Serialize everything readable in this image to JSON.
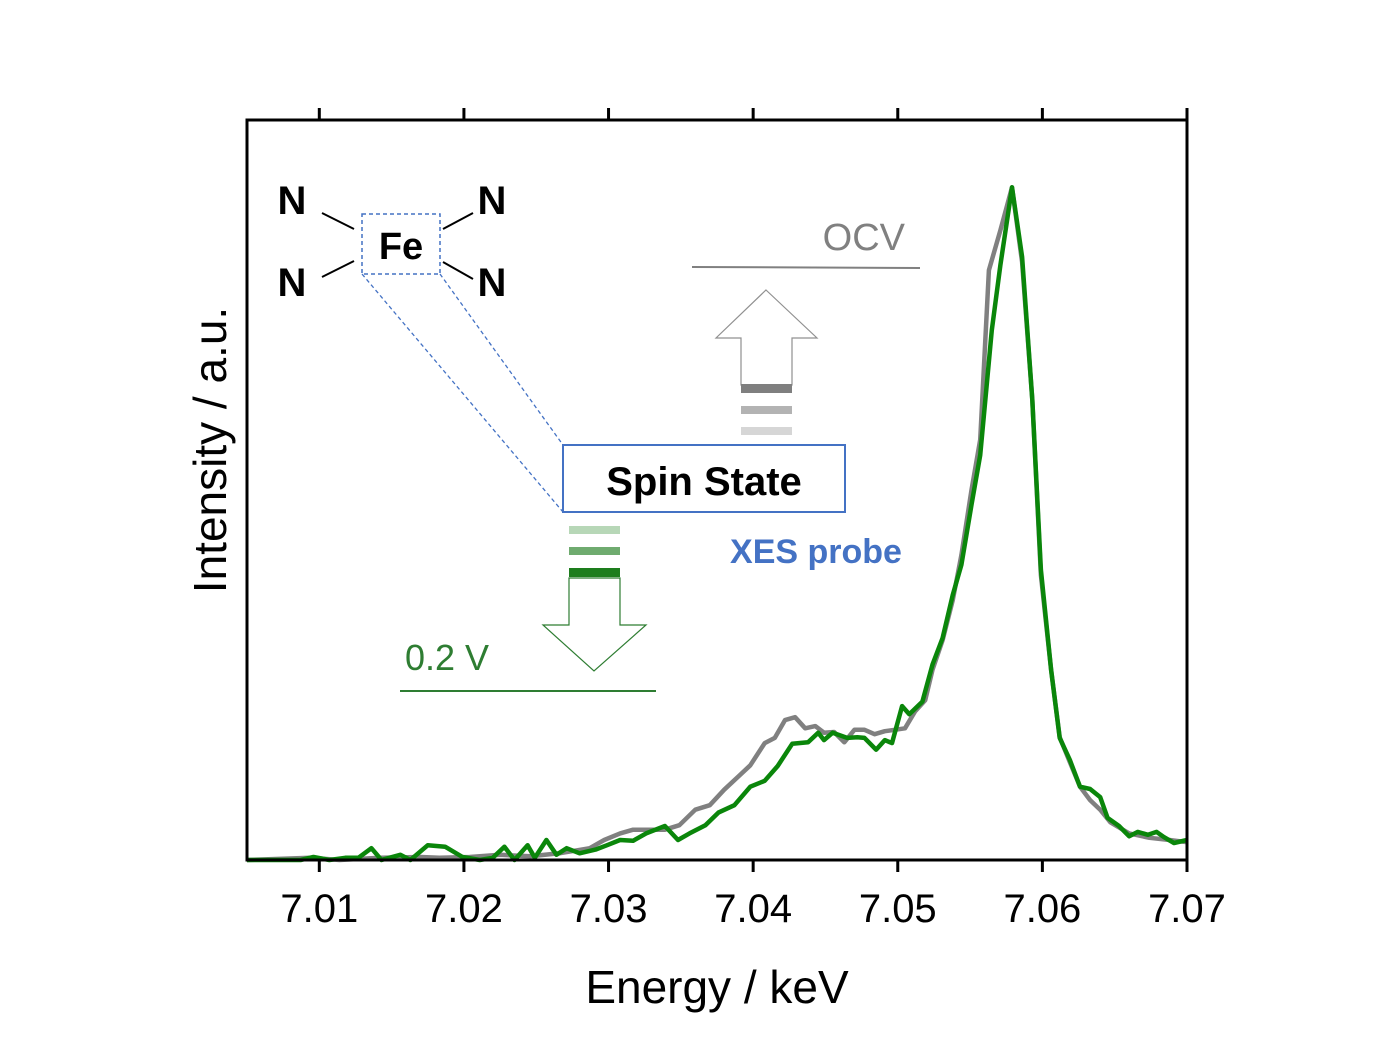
{
  "chart_data": {
    "type": "line",
    "title": "",
    "xlabel": "Energy / keV",
    "ylabel": "Intensity / a.u.",
    "xlim": [
      7.005,
      7.07
    ],
    "ylim": [
      0,
      1
    ],
    "xticks": [
      "7.01",
      "7.02",
      "7.03",
      "7.04",
      "7.05",
      "7.06",
      "7.07"
    ],
    "xtick_values": [
      7.01,
      7.02,
      7.03,
      7.04,
      7.05,
      7.06,
      7.07
    ],
    "yticks_shown": false,
    "grid": false,
    "series": [
      {
        "name": "OCV",
        "color": "#808080",
        "x": [
          7.005,
          7.0094,
          7.0114,
          7.0142,
          7.017,
          7.0183,
          7.0204,
          7.0225,
          7.0246,
          7.0266,
          7.0287,
          7.0297,
          7.0308,
          7.0317,
          7.0326,
          7.0339,
          7.0349,
          7.036,
          7.037,
          7.038,
          7.0391,
          7.0398,
          7.0408,
          7.0415,
          7.0422,
          7.0429,
          7.0436,
          7.0443,
          7.0449,
          7.0456,
          7.0463,
          7.047,
          7.0477,
          7.0484,
          7.0491,
          7.0498,
          7.0505,
          7.0512,
          7.0519,
          7.0524,
          7.0531,
          7.0538,
          7.0544,
          7.0551,
          7.0557,
          7.0563,
          7.0571,
          7.0579,
          7.0586,
          7.0593,
          7.0599,
          7.0606,
          7.0612,
          7.0619,
          7.0626,
          7.0633,
          7.064,
          7.0647,
          7.066,
          7.0674,
          7.0688,
          7.07
        ],
        "y": [
          0,
          0.003,
          0,
          0.003,
          0.004,
          0.003,
          0.004,
          0.007,
          0.005,
          0.009,
          0.016,
          0.027,
          0.036,
          0.041,
          0.041,
          0.041,
          0.047,
          0.068,
          0.074,
          0.095,
          0.115,
          0.128,
          0.158,
          0.165,
          0.189,
          0.193,
          0.178,
          0.181,
          0.172,
          0.173,
          0.159,
          0.176,
          0.176,
          0.17,
          0.174,
          0.176,
          0.178,
          0.201,
          0.216,
          0.257,
          0.297,
          0.351,
          0.412,
          0.5,
          0.568,
          0.797,
          0.851,
          0.909,
          0.808,
          0.622,
          0.385,
          0.257,
          0.166,
          0.132,
          0.099,
          0.081,
          0.068,
          0.051,
          0.036,
          0.03,
          0.027,
          0.024
        ]
      },
      {
        "name": "0.2 V",
        "color": "#0a860a",
        "x": [
          7.005,
          7.0087,
          7.0096,
          7.0107,
          7.0118,
          7.0127,
          7.0136,
          7.0143,
          7.0156,
          7.0163,
          7.0175,
          7.0187,
          7.0199,
          7.0211,
          7.022,
          7.0228,
          7.0235,
          7.0244,
          7.0249,
          7.0257,
          7.0264,
          7.0271,
          7.028,
          7.0291,
          7.0299,
          7.0308,
          7.0317,
          7.0326,
          7.0339,
          7.0348,
          7.0356,
          7.0367,
          7.0376,
          7.0387,
          7.0398,
          7.0408,
          7.0417,
          7.0427,
          7.0438,
          7.0445,
          7.0449,
          7.0455,
          7.0465,
          7.0472,
          7.0477,
          7.0485,
          7.0491,
          7.0496,
          7.0503,
          7.0508,
          7.0517,
          7.0524,
          7.0531,
          7.0538,
          7.0544,
          7.0551,
          7.0557,
          7.0565,
          7.0571,
          7.0579,
          7.0586,
          7.0593,
          7.0599,
          7.0606,
          7.0612,
          7.0619,
          7.0626,
          7.0633,
          7.064,
          7.0645,
          7.0653,
          7.066,
          7.0666,
          7.0673,
          7.0679,
          7.0684,
          7.0691,
          7.07
        ],
        "y": [
          0,
          0,
          0.004,
          0,
          0.003,
          0.003,
          0.016,
          0,
          0.007,
          0,
          0.02,
          0.018,
          0.004,
          0,
          0.003,
          0.018,
          0,
          0.02,
          0.003,
          0.027,
          0.007,
          0.016,
          0.009,
          0.014,
          0.02,
          0.027,
          0.026,
          0.036,
          0.046,
          0.027,
          0.036,
          0.047,
          0.064,
          0.074,
          0.099,
          0.107,
          0.127,
          0.157,
          0.159,
          0.172,
          0.162,
          0.172,
          0.165,
          0.166,
          0.165,
          0.149,
          0.162,
          0.158,
          0.208,
          0.197,
          0.214,
          0.264,
          0.3,
          0.358,
          0.399,
          0.48,
          0.547,
          0.716,
          0.804,
          0.909,
          0.815,
          0.622,
          0.392,
          0.257,
          0.165,
          0.135,
          0.099,
          0.096,
          0.085,
          0.057,
          0.046,
          0.032,
          0.038,
          0.034,
          0.038,
          0.031,
          0.023,
          0.027
        ]
      }
    ],
    "annotations": {
      "ligand_labels": [
        "N",
        "N",
        "N",
        "N"
      ],
      "metal_label": "Fe",
      "spin_state": "Spin State",
      "probe": "XES probe",
      "ocv_label": "OCV",
      "potential_label": "0.2 V"
    },
    "colors": {
      "ocv": "#808080",
      "potential": "#2e7d32",
      "probe": "#4472c4"
    }
  }
}
